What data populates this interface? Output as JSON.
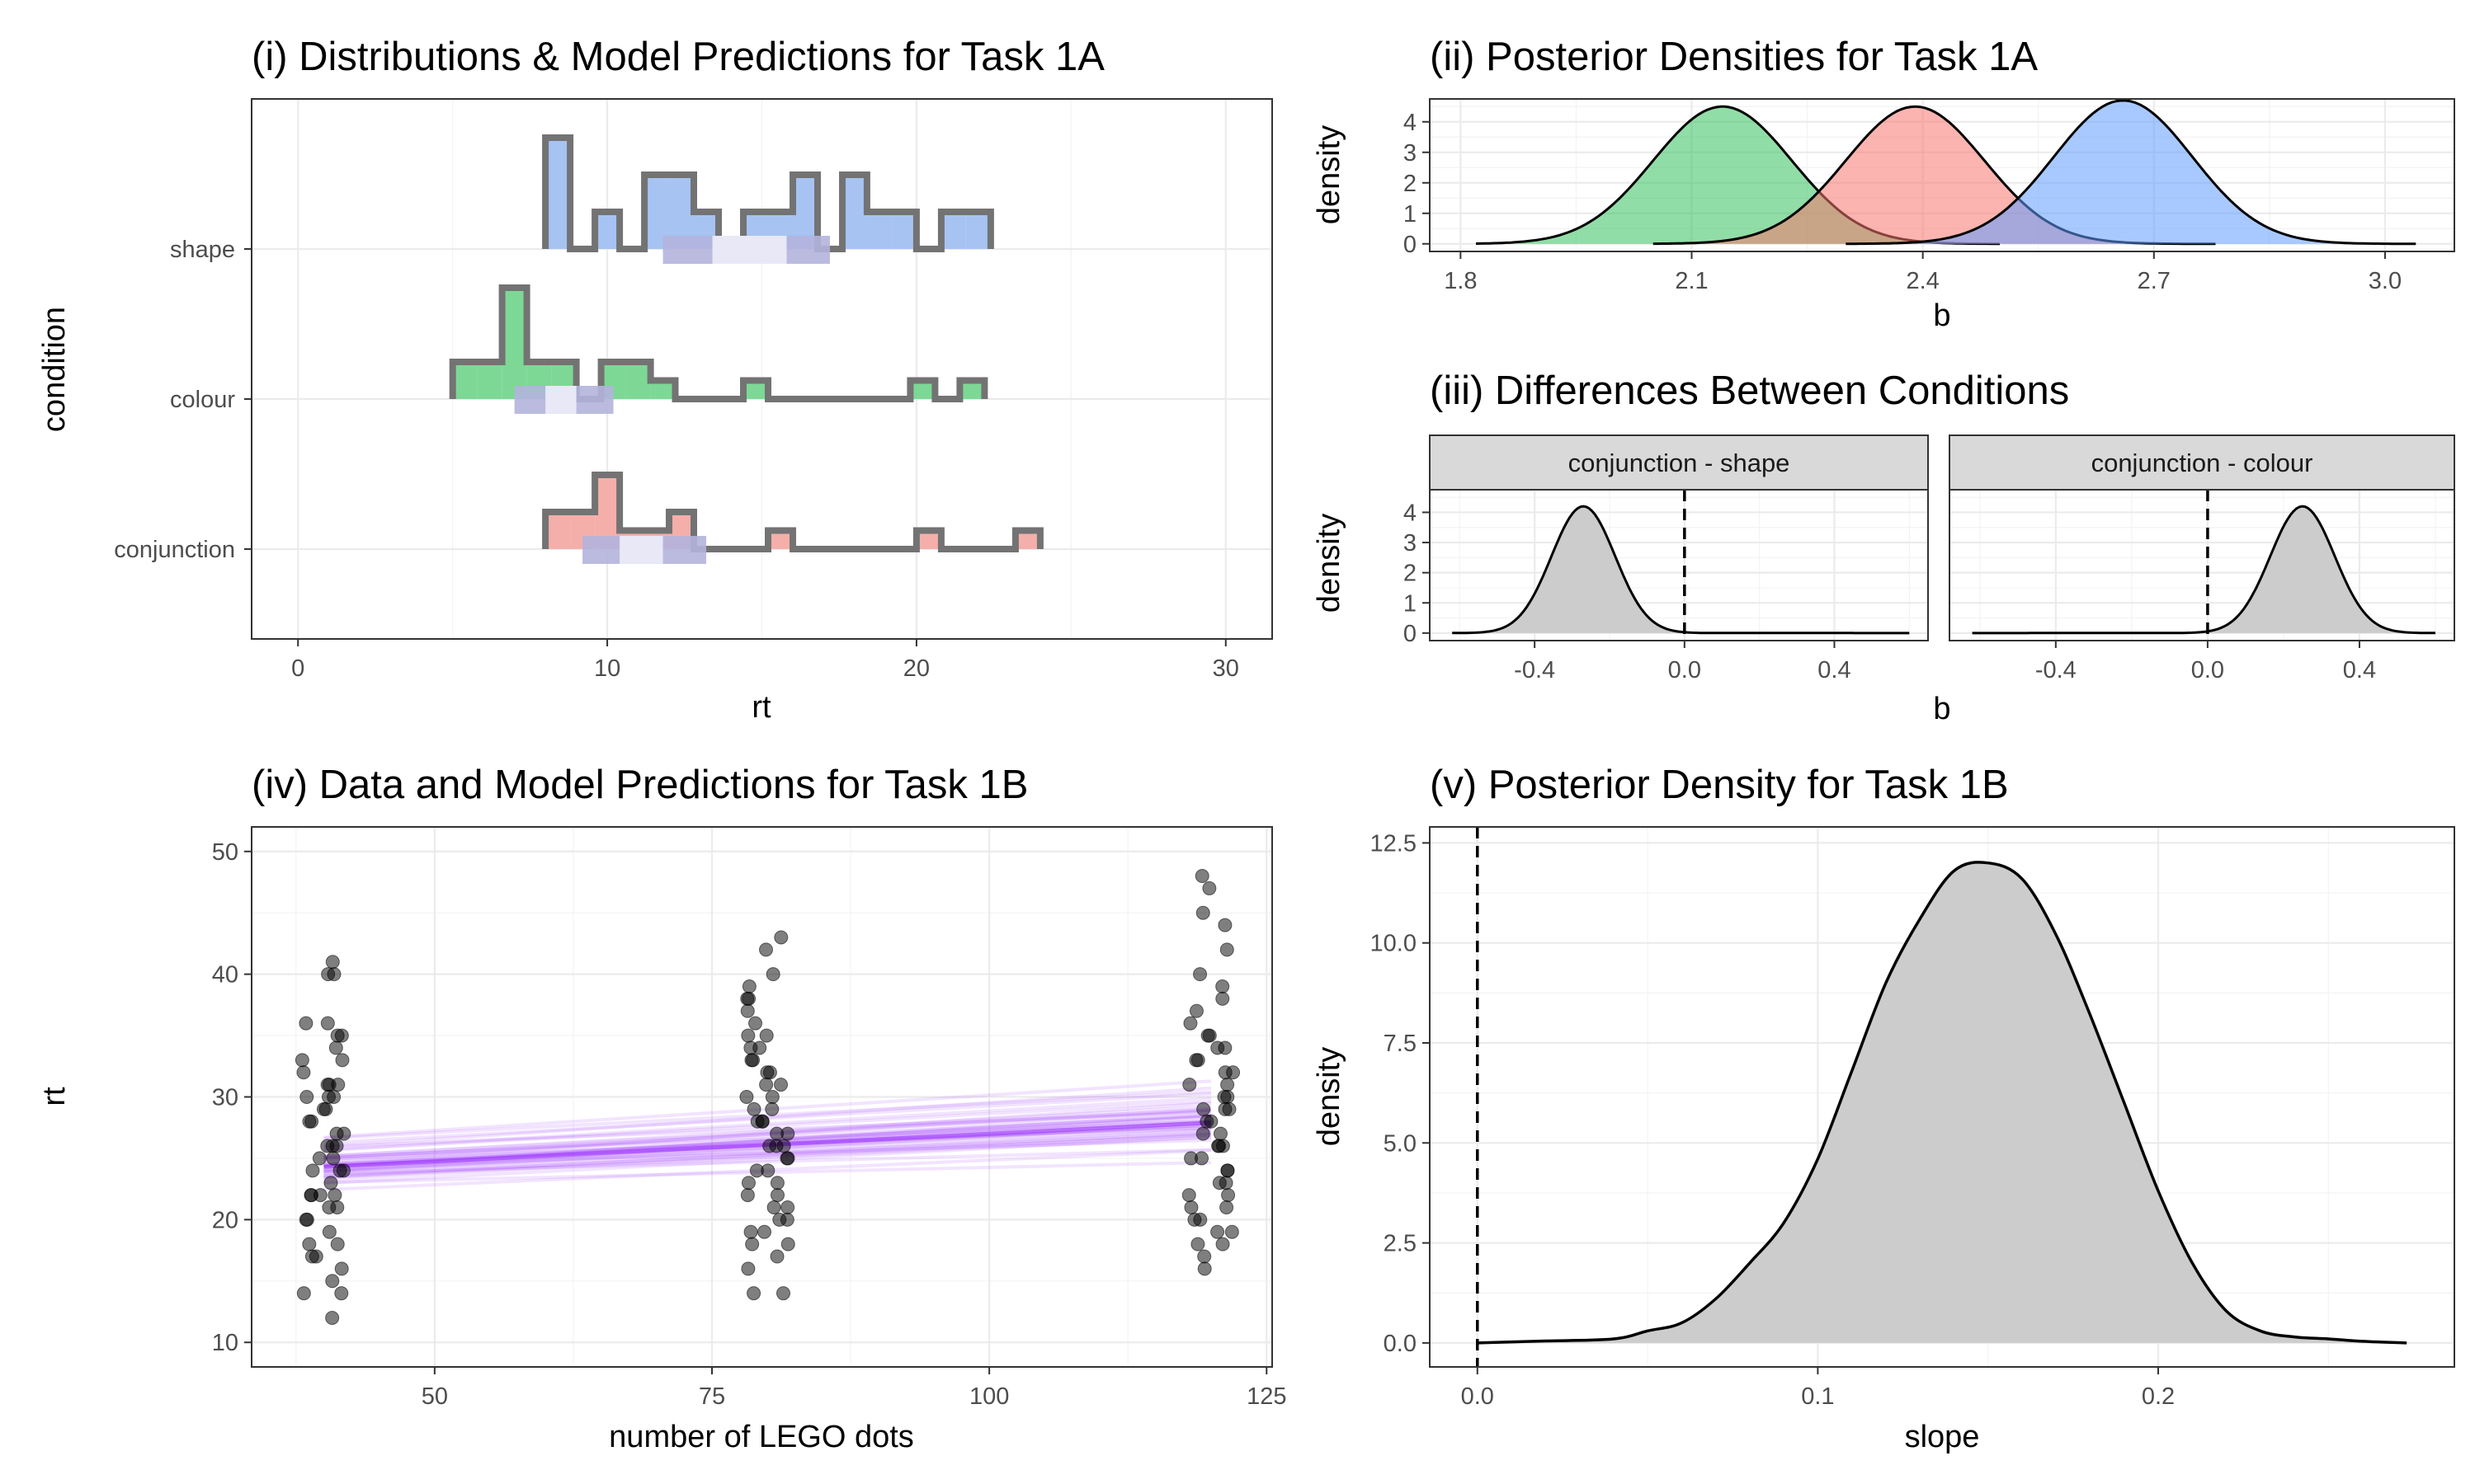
{
  "chart_data": [
    {
      "id": "p1",
      "type": "histogram",
      "title": "(i) Distributions & Model Predictions for Task 1A",
      "xlabel": "rt",
      "ylabel": "condition",
      "xlim": [
        -1.5,
        31.5
      ],
      "xticks": [
        0,
        10,
        20,
        30
      ],
      "categories": [
        "shape",
        "colour",
        "conjunction"
      ],
      "bin_width": 0.8,
      "series": [
        {
          "name": "shape",
          "color": "#a6c3f2",
          "bins": [
            {
              "x": 8.4,
              "h": 3
            },
            {
              "x": 9.2,
              "h": 0
            },
            {
              "x": 10.0,
              "h": 1
            },
            {
              "x": 10.8,
              "h": 0
            },
            {
              "x": 11.6,
              "h": 2
            },
            {
              "x": 12.4,
              "h": 2
            },
            {
              "x": 13.2,
              "h": 1
            },
            {
              "x": 14.0,
              "h": 0
            },
            {
              "x": 14.8,
              "h": 1
            },
            {
              "x": 15.6,
              "h": 1
            },
            {
              "x": 16.4,
              "h": 2
            },
            {
              "x": 17.2,
              "h": 0
            },
            {
              "x": 18.0,
              "h": 2
            },
            {
              "x": 18.8,
              "h": 1
            },
            {
              "x": 19.6,
              "h": 1
            },
            {
              "x": 20.4,
              "h": 0
            },
            {
              "x": 21.2,
              "h": 1
            },
            {
              "x": 22.0,
              "h": 1
            }
          ],
          "interval": [
            11.8,
            17.2
          ],
          "median": [
            13.4,
            15.8
          ]
        },
        {
          "name": "colour",
          "color": "#7dd895",
          "bins": [
            {
              "x": 5.4,
              "h": 1
            },
            {
              "x": 6.2,
              "h": 1
            },
            {
              "x": 7.0,
              "h": 3
            },
            {
              "x": 7.8,
              "h": 1
            },
            {
              "x": 8.6,
              "h": 1
            },
            {
              "x": 9.4,
              "h": 0
            },
            {
              "x": 10.2,
              "h": 1
            },
            {
              "x": 11.0,
              "h": 1
            },
            {
              "x": 11.8,
              "h": 0.5
            },
            {
              "x": 14.8,
              "h": 0.5
            },
            {
              "x": 20.2,
              "h": 0.5
            },
            {
              "x": 21.8,
              "h": 0.5
            }
          ],
          "interval": [
            7.0,
            10.2
          ],
          "median": [
            8.0,
            9.0
          ]
        },
        {
          "name": "conjunction",
          "color": "#f4afaa",
          "bins": [
            {
              "x": 8.4,
              "h": 1
            },
            {
              "x": 9.2,
              "h": 1
            },
            {
              "x": 10.0,
              "h": 2
            },
            {
              "x": 10.8,
              "h": 0.5
            },
            {
              "x": 11.6,
              "h": 0.5
            },
            {
              "x": 12.4,
              "h": 1
            },
            {
              "x": 15.6,
              "h": 0.5
            },
            {
              "x": 20.4,
              "h": 0.5
            },
            {
              "x": 23.6,
              "h": 0.5
            }
          ],
          "interval": [
            9.2,
            13.2
          ],
          "median": [
            10.4,
            11.8
          ]
        }
      ]
    },
    {
      "id": "p2",
      "type": "area",
      "title": "(ii) Posterior Densities for Task 1A",
      "xlabel": "b",
      "ylabel": "density",
      "xlim": [
        1.76,
        3.09
      ],
      "ylim": [
        -0.25,
        4.75
      ],
      "xticks": [
        1.8,
        2.1,
        2.4,
        2.7,
        3.0
      ],
      "xtick_labels": [
        "1.8",
        "2.1",
        "2.4",
        "2.7",
        "3.0"
      ],
      "yticks": [
        0,
        1,
        2,
        3,
        4
      ],
      "series": [
        {
          "name": "colour",
          "color": "#36c15e",
          "mean": 2.14,
          "sd": 0.09,
          "peak": 4.5,
          "range": [
            1.82,
            2.5
          ]
        },
        {
          "name": "conjunction",
          "color": "#f8766d",
          "mean": 2.39,
          "sd": 0.09,
          "peak": 4.5,
          "range": [
            2.05,
            2.78
          ]
        },
        {
          "name": "shape",
          "color": "#619cff",
          "mean": 2.66,
          "sd": 0.09,
          "peak": 4.7,
          "range": [
            2.3,
            3.04
          ]
        }
      ]
    },
    {
      "id": "p3",
      "type": "area",
      "title": "(iii) Differences Between Conditions",
      "xlabel": "b",
      "ylabel": "density",
      "xlim": [
        -0.68,
        0.65
      ],
      "ylim": [
        -0.25,
        4.75
      ],
      "xticks": [
        -0.4,
        0.0,
        0.4
      ],
      "xtick_labels": [
        "-0.4",
        "0.0",
        "0.4"
      ],
      "yticks": [
        0,
        1,
        2,
        3,
        4
      ],
      "vline": 0.0,
      "facets": [
        {
          "label": "conjunction - shape",
          "mean": -0.27,
          "sd": 0.085,
          "peak": 4.2,
          "range": [
            -0.62,
            0.6
          ]
        },
        {
          "label": "conjunction - colour",
          "mean": 0.25,
          "sd": 0.085,
          "peak": 4.2,
          "range": [
            -0.62,
            0.6
          ]
        }
      ]
    },
    {
      "id": "p4",
      "type": "scatter",
      "title": "(iv) Data and Model Predictions for Task 1B",
      "xlabel": "number of LEGO dots",
      "ylabel": "rt",
      "xlim": [
        33.5,
        125.5
      ],
      "ylim": [
        8,
        52
      ],
      "xticks": [
        50,
        75,
        100,
        125
      ],
      "yticks": [
        10,
        20,
        30,
        40,
        50
      ],
      "groups": [
        {
          "x": 40,
          "y": [
            15,
            14,
            18,
            22,
            24,
            26,
            28,
            30,
            31,
            33,
            35,
            36,
            22,
            20,
            17,
            25,
            27,
            29,
            31,
            34,
            41,
            40,
            40,
            36,
            32,
            30,
            28,
            26,
            24,
            22,
            21,
            19,
            18,
            17,
            16,
            14,
            12,
            25,
            27,
            23,
            21,
            20,
            33,
            29,
            31,
            22,
            24,
            26,
            30,
            35
          ]
        },
        {
          "x": 80,
          "y": [
            14,
            14,
            17,
            18,
            19,
            20,
            21,
            22,
            23,
            24,
            25,
            26,
            27,
            28,
            29,
            30,
            31,
            32,
            33,
            34,
            35,
            36,
            37,
            38,
            39,
            40,
            42,
            43,
            22,
            24,
            26,
            28,
            30,
            18,
            20,
            25,
            27,
            29,
            31,
            33,
            35,
            23,
            21,
            19,
            26,
            28,
            32,
            34,
            16,
            38
          ]
        },
        {
          "x": 120,
          "y": [
            16,
            17,
            18,
            19,
            20,
            21,
            22,
            23,
            24,
            25,
            26,
            27,
            28,
            29,
            30,
            31,
            32,
            33,
            34,
            35,
            36,
            37,
            38,
            39,
            40,
            42,
            44,
            45,
            47,
            48,
            20,
            22,
            24,
            26,
            28,
            30,
            32,
            34,
            18,
            19,
            23,
            25,
            27,
            29,
            31,
            33,
            21,
            26,
            29,
            35
          ]
        }
      ],
      "fit": {
        "intercept": 22.5,
        "slope": 0.045,
        "color": "#9b30ff",
        "n_draws": 40,
        "intercept_sd": 1.1,
        "slope_sd": 0.012
      }
    },
    {
      "id": "p5",
      "type": "area",
      "title": "(v) Posterior Density for Task 1B",
      "xlabel": "slope",
      "ylabel": "density",
      "xlim": [
        -0.014,
        0.287
      ],
      "ylim": [
        -0.6,
        12.9
      ],
      "xticks": [
        0.0,
        0.1,
        0.2
      ],
      "xtick_labels": [
        "0.0",
        "0.1",
        "0.2"
      ],
      "yticks": [
        0,
        2.5,
        5,
        7.5,
        10,
        12.5
      ],
      "ytick_labels": [
        "0.0",
        "2.5",
        "5.0",
        "7.5",
        "10.0",
        "12.5"
      ],
      "vline": 0.0,
      "density": {
        "x": [
          0.0,
          0.02,
          0.04,
          0.05,
          0.06,
          0.07,
          0.08,
          0.09,
          0.1,
          0.11,
          0.12,
          0.13,
          0.14,
          0.15,
          0.16,
          0.17,
          0.18,
          0.19,
          0.2,
          0.21,
          0.22,
          0.23,
          0.24,
          0.25,
          0.26,
          0.273
        ],
        "y": [
          0.0,
          0.05,
          0.1,
          0.3,
          0.5,
          1.1,
          2.0,
          3.0,
          4.6,
          6.8,
          9.0,
          10.6,
          11.8,
          12.0,
          11.6,
          10.2,
          8.2,
          6.0,
          3.8,
          2.0,
          0.8,
          0.3,
          0.15,
          0.1,
          0.04,
          0.0
        ]
      }
    }
  ]
}
